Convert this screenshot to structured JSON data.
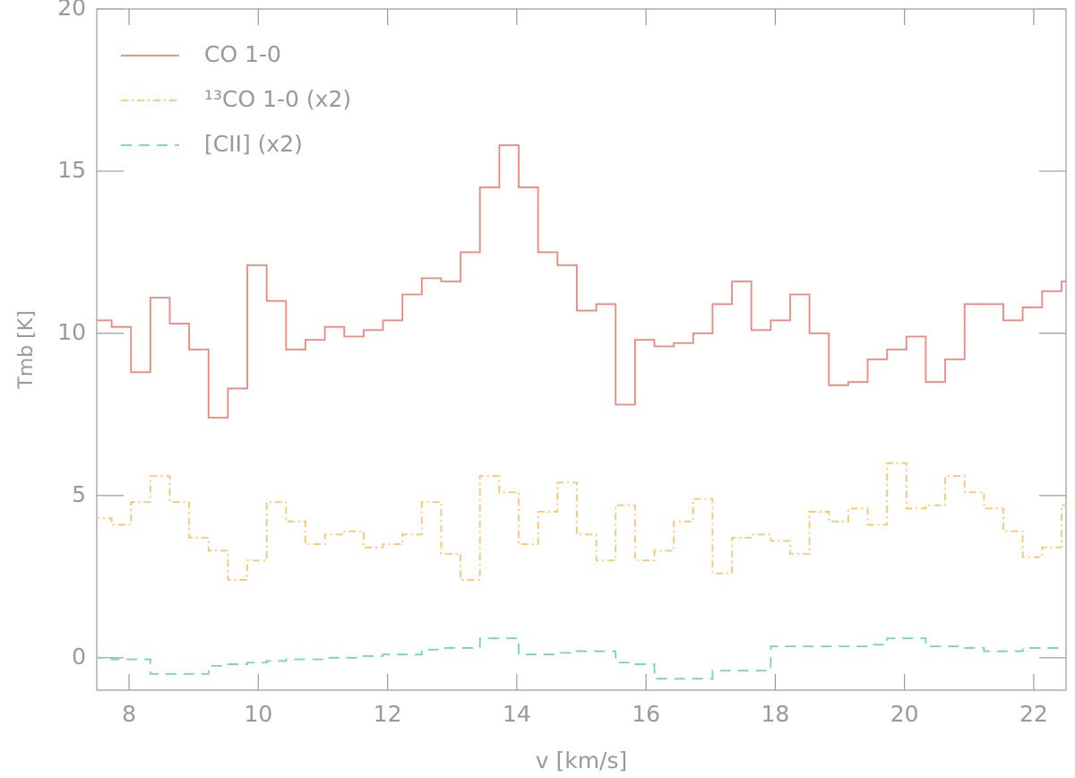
{
  "chart_data": {
    "type": "step",
    "xlabel": "v [km/s]",
    "ylabel": "Tmb [K]",
    "xlim": [
      7.5,
      22.5
    ],
    "xticks": [
      8,
      10,
      12,
      14,
      16,
      18,
      20,
      22
    ],
    "ylim": [
      -1,
      20
    ],
    "yticks": [
      0,
      5,
      10,
      15,
      20
    ],
    "legend": "upper left",
    "x": [
      7.58,
      7.88,
      8.18,
      8.48,
      8.78,
      9.08,
      9.38,
      9.68,
      9.98,
      10.28,
      10.58,
      10.88,
      11.18,
      11.48,
      11.78,
      12.08,
      12.38,
      12.68,
      12.98,
      13.28,
      13.58,
      13.88,
      14.18,
      14.48,
      14.78,
      15.08,
      15.38,
      15.68,
      15.98,
      16.28,
      16.58,
      16.88,
      17.18,
      17.48,
      17.78,
      18.08,
      18.38,
      18.68,
      18.98,
      19.28,
      19.58,
      19.88,
      20.18,
      20.48,
      20.78,
      21.08,
      21.38,
      21.68,
      21.98,
      22.28,
      22.58
    ],
    "series": [
      {
        "name": "CO 1-0",
        "color": "#f4857c",
        "dash": "none",
        "values": [
          10.4,
          10.2,
          8.8,
          11.1,
          10.3,
          9.5,
          7.4,
          8.3,
          12.1,
          11.0,
          9.5,
          9.8,
          10.2,
          9.9,
          10.1,
          10.4,
          11.2,
          11.7,
          11.6,
          12.5,
          14.5,
          15.8,
          14.5,
          12.5,
          12.1,
          10.7,
          10.9,
          7.8,
          9.8,
          9.6,
          9.7,
          10.0,
          10.9,
          11.6,
          10.1,
          10.4,
          11.2,
          10.0,
          8.4,
          8.5,
          9.2,
          9.5,
          9.9,
          8.5,
          9.2,
          10.9,
          10.9,
          10.4,
          10.8,
          11.3,
          11.6
        ]
      },
      {
        "name": "¹³CO 1-0 (x2)",
        "color": "#ffc46a",
        "dash": "8 4 2 4",
        "values": [
          4.3,
          4.1,
          4.8,
          5.6,
          4.8,
          3.7,
          3.3,
          2.4,
          3.0,
          4.8,
          4.2,
          3.5,
          3.8,
          3.9,
          3.4,
          3.5,
          3.8,
          4.8,
          3.2,
          2.4,
          5.6,
          5.1,
          3.5,
          4.5,
          5.4,
          3.8,
          3.0,
          4.7,
          3.0,
          3.3,
          4.2,
          4.9,
          2.6,
          3.7,
          3.8,
          3.6,
          3.2,
          4.5,
          4.2,
          4.6,
          4.1,
          6.0,
          4.6,
          4.7,
          5.6,
          5.1,
          4.6,
          3.9,
          3.1,
          3.4,
          4.7
        ]
      },
      {
        "name": "[CII] (x2)",
        "color": "#72d2c8",
        "dash": "12 8",
        "values": [
          0,
          -0.05,
          -0.05,
          -0.5,
          -0.5,
          -0.5,
          -0.25,
          -0.2,
          -0.15,
          -0.1,
          -0.05,
          -0.05,
          0,
          0,
          0.05,
          0.1,
          0.1,
          0.25,
          0.3,
          0.3,
          0.6,
          0.6,
          0.1,
          0.1,
          0.15,
          0.2,
          0.2,
          -0.15,
          -0.2,
          -0.65,
          -0.65,
          -0.65,
          -0.4,
          -0.4,
          -0.4,
          0.35,
          0.35,
          0.35,
          0.35,
          0.35,
          0.4,
          0.6,
          0.6,
          0.35,
          0.35,
          0.3,
          0.2,
          0.2,
          0.3,
          0.3,
          0.3
        ]
      }
    ]
  }
}
